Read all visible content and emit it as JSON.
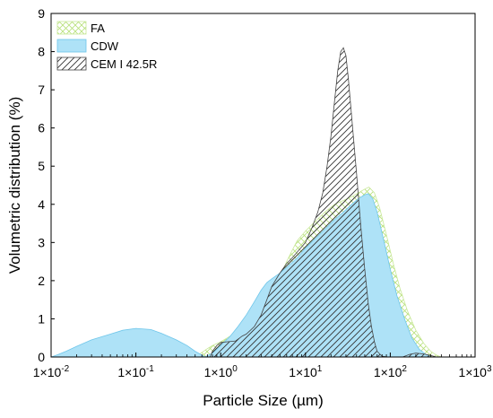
{
  "chart_data": {
    "type": "area",
    "x_scale": "log",
    "xlim": [
      0.01,
      1000
    ],
    "ylim": [
      0,
      9
    ],
    "xlabel": "Particle Size (µm)",
    "ylabel": "Volumetric distribution (%)",
    "legend_position": "top-left",
    "y_ticks": [
      "0",
      "1",
      "2",
      "3",
      "4",
      "5",
      "6",
      "7",
      "8",
      "9"
    ],
    "x_ticks": [
      {
        "value": 0.01,
        "base": "1×10",
        "exp": "-2"
      },
      {
        "value": 0.1,
        "base": "1×10",
        "exp": "-1"
      },
      {
        "value": 1,
        "base": "1×10",
        "exp": "0"
      },
      {
        "value": 10,
        "base": "1×10",
        "exp": "1"
      },
      {
        "value": 100,
        "base": "1×10",
        "exp": "2"
      },
      {
        "value": 1000,
        "base": "1×10",
        "exp": "3"
      }
    ],
    "series": [
      {
        "name": "FA",
        "fill": "crosshatch",
        "color": "#b7e07a",
        "points": [
          [
            0.5,
            0.0
          ],
          [
            0.6,
            0.12
          ],
          [
            0.7,
            0.22
          ],
          [
            0.8,
            0.3
          ],
          [
            1.0,
            0.4
          ],
          [
            1.3,
            0.55
          ],
          [
            1.6,
            0.75
          ],
          [
            2.0,
            0.92
          ],
          [
            2.5,
            1.05
          ],
          [
            3.0,
            1.2
          ],
          [
            3.5,
            1.4
          ],
          [
            4.0,
            1.7
          ],
          [
            5.0,
            2.1
          ],
          [
            6.0,
            2.5
          ],
          [
            7.0,
            2.8
          ],
          [
            8.0,
            3.05
          ],
          [
            10.0,
            3.3
          ],
          [
            13.0,
            3.55
          ],
          [
            17.0,
            3.8
          ],
          [
            22.0,
            4.0
          ],
          [
            28.0,
            4.1
          ],
          [
            35.0,
            4.2
          ],
          [
            42.0,
            4.3
          ],
          [
            50.0,
            4.4
          ],
          [
            56.0,
            4.45
          ],
          [
            65.0,
            4.3
          ],
          [
            75.0,
            3.9
          ],
          [
            90.0,
            3.2
          ],
          [
            110.0,
            2.4
          ],
          [
            130.0,
            1.8
          ],
          [
            160.0,
            1.2
          ],
          [
            200.0,
            0.7
          ],
          [
            250.0,
            0.35
          ],
          [
            300.0,
            0.15
          ],
          [
            350.0,
            0.05
          ],
          [
            400.0,
            0.0
          ]
        ]
      },
      {
        "name": "CDW",
        "fill": "solid",
        "color": "#aee2f7",
        "points": [
          [
            0.01,
            0.0
          ],
          [
            0.012,
            0.06
          ],
          [
            0.015,
            0.15
          ],
          [
            0.02,
            0.28
          ],
          [
            0.03,
            0.45
          ],
          [
            0.05,
            0.6
          ],
          [
            0.07,
            0.7
          ],
          [
            0.1,
            0.75
          ],
          [
            0.15,
            0.72
          ],
          [
            0.2,
            0.62
          ],
          [
            0.3,
            0.45
          ],
          [
            0.4,
            0.3
          ],
          [
            0.5,
            0.15
          ],
          [
            0.6,
            0.05
          ],
          [
            0.65,
            0.0
          ],
          [
            0.8,
            0.1
          ],
          [
            1.0,
            0.3
          ],
          [
            1.3,
            0.55
          ],
          [
            1.6,
            0.8
          ],
          [
            2.0,
            1.1
          ],
          [
            2.5,
            1.45
          ],
          [
            3.0,
            1.75
          ],
          [
            3.5,
            1.95
          ],
          [
            4.0,
            2.05
          ],
          [
            5.0,
            2.2
          ],
          [
            6.0,
            2.35
          ],
          [
            8.0,
            2.6
          ],
          [
            10.0,
            2.85
          ],
          [
            13.0,
            3.1
          ],
          [
            17.0,
            3.35
          ],
          [
            22.0,
            3.6
          ],
          [
            28.0,
            3.8
          ],
          [
            35.0,
            4.0
          ],
          [
            42.0,
            4.15
          ],
          [
            50.0,
            4.25
          ],
          [
            55.0,
            4.28
          ],
          [
            62.0,
            4.15
          ],
          [
            70.0,
            3.8
          ],
          [
            85.0,
            3.0
          ],
          [
            100.0,
            2.3
          ],
          [
            120.0,
            1.6
          ],
          [
            150.0,
            0.95
          ],
          [
            180.0,
            0.5
          ],
          [
            220.0,
            0.2
          ],
          [
            270.0,
            0.05
          ],
          [
            300.0,
            0.0
          ]
        ]
      },
      {
        "name": "CEM I 42.5R",
        "fill": "diagonal",
        "color": "#000000",
        "points": [
          [
            0.75,
            0.0
          ],
          [
            0.8,
            0.15
          ],
          [
            0.9,
            0.3
          ],
          [
            1.0,
            0.38
          ],
          [
            1.2,
            0.4
          ],
          [
            1.5,
            0.42
          ],
          [
            1.8,
            0.55
          ],
          [
            2.0,
            0.6
          ],
          [
            2.5,
            0.8
          ],
          [
            3.0,
            1.1
          ],
          [
            3.5,
            1.5
          ],
          [
            4.0,
            1.85
          ],
          [
            5.0,
            2.2
          ],
          [
            6.0,
            2.45
          ],
          [
            7.0,
            2.6
          ],
          [
            8.0,
            2.75
          ],
          [
            10.0,
            3.0
          ],
          [
            12.0,
            3.4
          ],
          [
            14.0,
            3.8
          ],
          [
            16.0,
            4.3
          ],
          [
            18.0,
            5.0
          ],
          [
            20.0,
            5.8
          ],
          [
            22.0,
            6.7
          ],
          [
            24.0,
            7.5
          ],
          [
            26.0,
            8.0
          ],
          [
            28.0,
            8.1
          ],
          [
            30.0,
            7.9
          ],
          [
            32.0,
            7.3
          ],
          [
            35.0,
            6.3
          ],
          [
            40.0,
            4.8
          ],
          [
            45.0,
            3.4
          ],
          [
            50.0,
            2.3
          ],
          [
            55.0,
            1.4
          ],
          [
            60.0,
            0.8
          ],
          [
            65.0,
            0.4
          ],
          [
            70.0,
            0.15
          ],
          [
            80.0,
            0.02
          ],
          [
            95.0,
            0.0
          ],
          [
            140.0,
            0.0
          ],
          [
            170.0,
            0.07
          ],
          [
            200.0,
            0.1
          ],
          [
            250.0,
            0.08
          ],
          [
            300.0,
            0.04
          ],
          [
            350.0,
            0.0
          ]
        ]
      }
    ]
  }
}
